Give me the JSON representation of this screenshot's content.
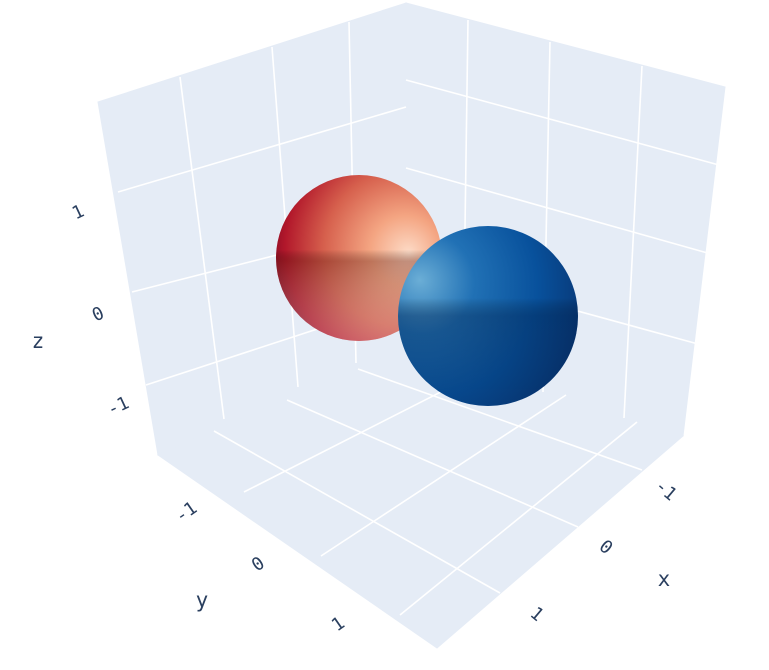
{
  "chart_data": {
    "type": "surface",
    "axes": {
      "x": {
        "title": "x",
        "ticks": [
          "-1",
          "0",
          "1"
        ],
        "range": [
          -1.7,
          1.7
        ]
      },
      "y": {
        "title": "y",
        "ticks": [
          "-1",
          "0",
          "1"
        ],
        "range": [
          -1.7,
          1.7
        ]
      },
      "z": {
        "title": "z",
        "ticks": [
          "1",
          "0",
          "-1"
        ],
        "range": [
          -1.7,
          1.7
        ]
      }
    },
    "background": "#e5ecf6",
    "grid": true,
    "series": [
      {
        "shape": "sphere",
        "colorscale": "Reds",
        "colors": [
          "#67001f",
          "#b2182b",
          "#d6604d",
          "#f4a582",
          "#fddbc7"
        ]
      },
      {
        "shape": "sphere",
        "colorscale": "Blues",
        "colors": [
          "#6baed6",
          "#2171b5",
          "#08519c",
          "#08306b"
        ]
      }
    ]
  }
}
